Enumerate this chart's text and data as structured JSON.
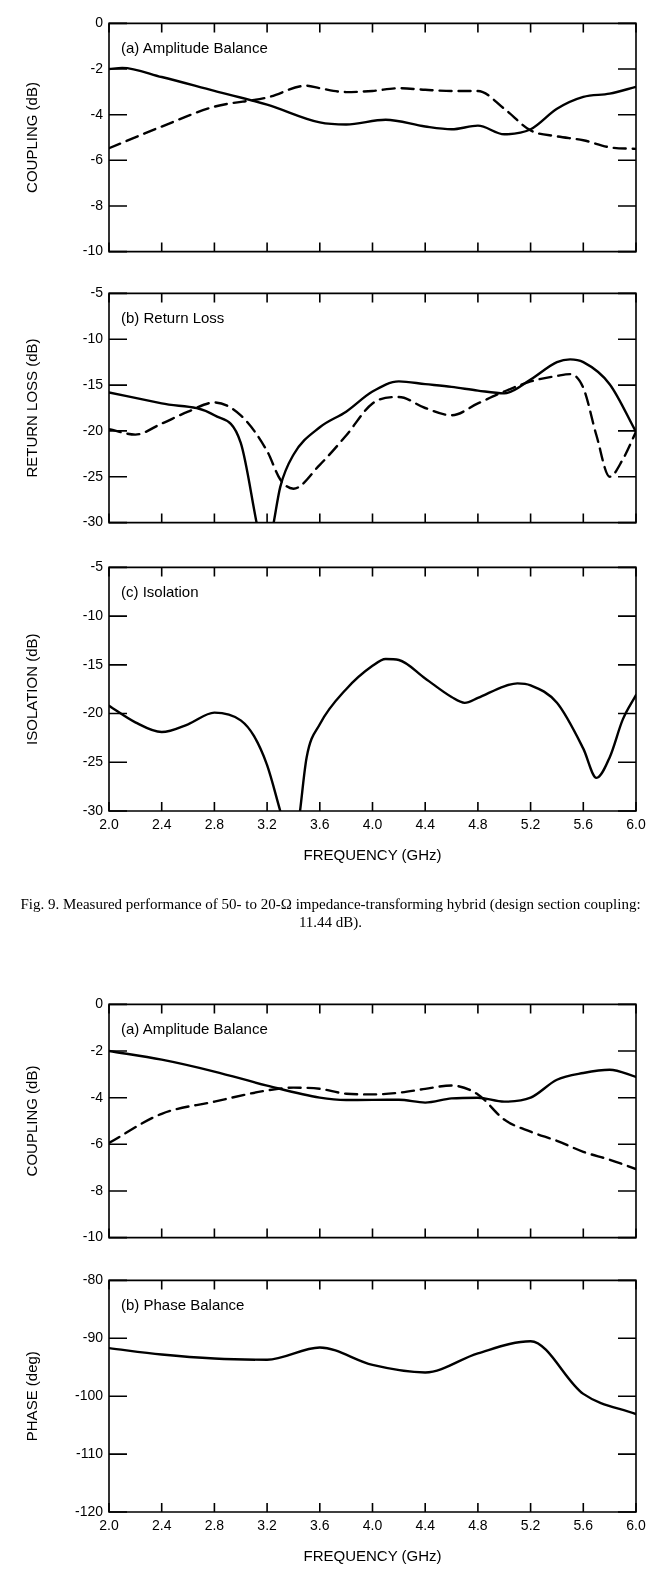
{
  "chart_data": [
    {
      "type": "line",
      "title": "(a) Amplitude Balance",
      "ylabel": "COUPLING (dB)",
      "xlim": [
        2.0,
        6.0
      ],
      "xticks": [
        2.0,
        2.4,
        2.8,
        3.2,
        3.6,
        4.0,
        4.4,
        4.8,
        5.2,
        5.6,
        6.0
      ],
      "ylim": [
        -10,
        0
      ],
      "yticks": [
        -10,
        -8,
        -6,
        -4,
        -2,
        0
      ],
      "tick_labels": "y",
      "marker": "none",
      "series": [
        {
          "color": "#000000",
          "line_style": "solid",
          "x": [
            2.0,
            2.1,
            2.4,
            2.8,
            3.2,
            3.6,
            3.8,
            4.1,
            4.4,
            4.6,
            4.8,
            5.0,
            5.2,
            5.4,
            5.6,
            5.8,
            6.0
          ],
          "values": [
            -2.0,
            -1.95,
            -2.35,
            -2.96,
            -3.56,
            -4.34,
            -4.43,
            -4.22,
            -4.52,
            -4.64,
            -4.48,
            -4.86,
            -4.64,
            -3.74,
            -3.22,
            -3.08,
            -2.78
          ]
        },
        {
          "color": "#000000",
          "line_style": "dashed",
          "x": [
            2.0,
            2.4,
            2.8,
            3.2,
            3.5,
            3.6,
            3.8,
            4.0,
            4.2,
            4.4,
            4.6,
            4.8,
            5.0,
            5.2,
            5.4,
            5.6,
            5.8,
            6.0
          ],
          "values": [
            -5.47,
            -4.52,
            -3.65,
            -3.25,
            -2.73,
            -2.84,
            -3.01,
            -2.96,
            -2.84,
            -2.91,
            -2.96,
            -2.96,
            -3.74,
            -4.69,
            -4.95,
            -5.12,
            -5.43,
            -5.5
          ]
        }
      ]
    },
    {
      "type": "line",
      "title": "(b) Return Loss",
      "ylabel": "RETURN LOSS (dB)",
      "xlim": [
        2.0,
        6.0
      ],
      "xticks": [
        2.0,
        2.4,
        2.8,
        3.2,
        3.6,
        4.0,
        4.4,
        4.8,
        5.2,
        5.6,
        6.0
      ],
      "ylim": [
        -30,
        -5
      ],
      "yticks": [
        -30,
        -25,
        -20,
        -15,
        -10,
        -5
      ],
      "tick_labels": "y",
      "marker": "none",
      "series": [
        {
          "color": "#000000",
          "line_style": "solid",
          "x": [
            2.0,
            2.4,
            2.8,
            3.0,
            3.12,
            3.18,
            3.25,
            3.3,
            3.4,
            3.6,
            3.8,
            4.0,
            4.2,
            4.4,
            4.6,
            4.8,
            5.0,
            5.2,
            5.4,
            5.5,
            5.6,
            5.8,
            6.0
          ],
          "values": [
            -15.8,
            -17.0,
            -18.3,
            -21.3,
            -30,
            null,
            -30,
            -26.1,
            -22.6,
            -19.6,
            -17.9,
            -15.7,
            -14.6,
            -14.9,
            -15.2,
            -15.6,
            -15.9,
            -14.4,
            -12.5,
            -12.2,
            -12.5,
            -14.9,
            -20.1
          ]
        },
        {
          "color": "#000000",
          "line_style": "dashed",
          "x": [
            2.0,
            2.2,
            2.4,
            2.6,
            2.8,
            3.0,
            3.2,
            3.3,
            3.4,
            3.6,
            3.8,
            4.0,
            4.2,
            4.4,
            4.6,
            4.8,
            5.0,
            5.2,
            5.4,
            5.5,
            5.6,
            5.7,
            5.8,
            5.9,
            6.0
          ],
          "values": [
            -19.8,
            -20.4,
            -19.2,
            -17.9,
            -16.9,
            -18.3,
            -22.2,
            -25.3,
            -26.3,
            -23.7,
            -20.5,
            -17.0,
            -16.3,
            -17.5,
            -18.3,
            -17.0,
            -15.7,
            -14.6,
            -14.0,
            -13.8,
            -15.3,
            -20.5,
            -25.0,
            -23.1,
            -20.1
          ]
        }
      ]
    },
    {
      "type": "line",
      "title": "(c) Isolation",
      "xlabel": "FREQUENCY (GHz)",
      "ylabel": "ISOLATION (dB)",
      "xlim": [
        2.0,
        6.0
      ],
      "xticks": [
        {
          "value": 2.0,
          "label": "2.0"
        },
        2.4,
        2.8,
        3.2,
        3.6,
        {
          "value": 4.0,
          "label": "4.0"
        },
        4.4,
        4.8,
        5.2,
        5.6,
        {
          "value": 6.0,
          "label": "6.0"
        }
      ],
      "ylim": [
        -30,
        -5
      ],
      "yticks": [
        -30,
        -25,
        -20,
        -15,
        -10,
        -5
      ],
      "marker": "none",
      "annotations": [
        "Fig. 9.   Measured performance of 50- to 20-Ω impedance-transforming hybrid (design section coupling: 11.44 dB)."
      ],
      "series": [
        {
          "color": "#000000",
          "line_style": "solid",
          "x": [
            2.0,
            2.2,
            2.4,
            2.6,
            2.8,
            3.0,
            3.1,
            3.2,
            3.3,
            3.38,
            3.45,
            3.5,
            3.6,
            3.8,
            4.0,
            4.1,
            4.2,
            4.4,
            4.6,
            4.7,
            4.8,
            5.0,
            5.1,
            5.2,
            5.4,
            5.6,
            5.7,
            5.8,
            5.9,
            6.0
          ],
          "values": [
            -19.2,
            -20.9,
            -21.9,
            -21.1,
            -19.9,
            -20.7,
            -22.3,
            -25.3,
            -30,
            null,
            -30,
            -24.5,
            -21.1,
            -17.5,
            -15.1,
            -14.4,
            -14.5,
            -16.4,
            -18.3,
            -18.9,
            -18.4,
            -17.2,
            -16.9,
            -17.1,
            -18.9,
            -23.6,
            -26.6,
            -24.5,
            -20.6,
            -18.1
          ]
        }
      ]
    },
    {
      "type": "line",
      "title": "(a) Amplitude Balance",
      "ylabel": "COUPLING (dB)",
      "xlim": [
        2.0,
        6.0
      ],
      "xticks": [
        2.0,
        2.4,
        2.8,
        3.2,
        3.6,
        4.0,
        4.4,
        4.8,
        5.2,
        5.6,
        6.0
      ],
      "ylim": [
        -10,
        0
      ],
      "yticks": [
        -10,
        -8,
        -6,
        -4,
        -2,
        0
      ],
      "tick_labels": "y",
      "marker": "none",
      "series": [
        {
          "color": "#000000",
          "line_style": "solid",
          "x": [
            2.0,
            2.4,
            2.8,
            3.2,
            3.6,
            3.8,
            4.2,
            4.4,
            4.6,
            4.8,
            5.0,
            5.2,
            5.4,
            5.6,
            5.8,
            6.0
          ],
          "values": [
            -2.0,
            -2.37,
            -2.88,
            -3.48,
            -4.0,
            -4.1,
            -4.09,
            -4.21,
            -4.03,
            -4.0,
            -4.17,
            -4.0,
            -3.23,
            -2.94,
            -2.8,
            -3.11
          ]
        },
        {
          "color": "#000000",
          "line_style": "dashed",
          "x": [
            2.0,
            2.4,
            2.8,
            3.2,
            3.4,
            3.6,
            3.8,
            4.0,
            4.2,
            4.4,
            4.6,
            4.8,
            5.0,
            5.2,
            5.4,
            5.6,
            5.8,
            6.0
          ],
          "values": [
            -5.94,
            -4.69,
            -4.17,
            -3.69,
            -3.57,
            -3.62,
            -3.83,
            -3.86,
            -3.79,
            -3.62,
            -3.48,
            -3.86,
            -4.94,
            -5.46,
            -5.85,
            -6.32,
            -6.66,
            -7.06
          ]
        }
      ]
    },
    {
      "type": "line",
      "title": "(b) Phase Balance",
      "xlabel": "FREQUENCY (GHz)",
      "ylabel": "PHASE (deg)",
      "xlim": [
        2.0,
        6.0
      ],
      "xticks": [
        {
          "value": 2.0,
          "label": "2.0"
        },
        2.4,
        2.8,
        3.2,
        3.6,
        {
          "value": 4.0,
          "label": "4.0"
        },
        4.4,
        4.8,
        5.2,
        5.6,
        {
          "value": 6.0,
          "label": "6.0"
        }
      ],
      "ylim": [
        -120,
        -80
      ],
      "yticks": [
        -120,
        -110,
        -100,
        -90,
        -80
      ],
      "marker": "none",
      "series": [
        {
          "color": "#000000",
          "line_style": "solid",
          "x": [
            2.0,
            2.4,
            2.8,
            3.2,
            3.6,
            4.0,
            4.4,
            4.8,
            5.2,
            5.6,
            6.0
          ],
          "values": [
            -91.7,
            -92.8,
            -93.5,
            -93.7,
            -91.6,
            -94.6,
            -95.9,
            -92.6,
            -90.5,
            -99.6,
            -103.1
          ]
        }
      ]
    }
  ]
}
